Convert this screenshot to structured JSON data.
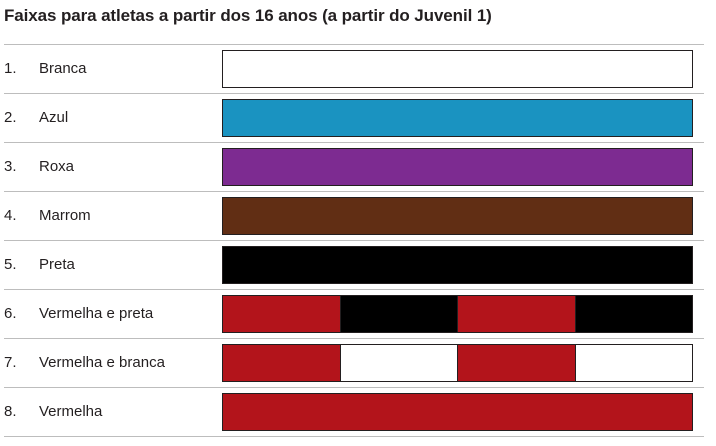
{
  "title": "Faixas para atletas a partir dos 16 anos (a partir do Juvenil 1)",
  "belts": [
    {
      "number": "1.",
      "label": "Branca",
      "colors": [
        "#ffffff"
      ]
    },
    {
      "number": "2.",
      "label": "Azul",
      "colors": [
        "#1a93c1"
      ]
    },
    {
      "number": "3.",
      "label": "Roxa",
      "colors": [
        "#7d2b91"
      ]
    },
    {
      "number": "4.",
      "label": "Marrom",
      "colors": [
        "#612e14"
      ]
    },
    {
      "number": "5.",
      "label": "Preta",
      "colors": [
        "#000000"
      ]
    },
    {
      "number": "6.",
      "label": "Vermelha e preta",
      "colors": [
        "#b3141b",
        "#000000",
        "#b3141b",
        "#000000"
      ]
    },
    {
      "number": "7.",
      "label": "Vermelha e branca",
      "colors": [
        "#b3141b",
        "#ffffff",
        "#b3141b",
        "#ffffff"
      ]
    },
    {
      "number": "8.",
      "label": "Vermelha",
      "colors": [
        "#b3141b"
      ]
    }
  ]
}
